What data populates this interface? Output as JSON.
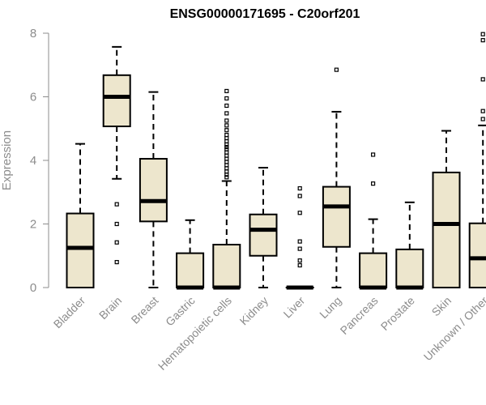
{
  "chart_data": {
    "type": "box",
    "title": "ENSG00000171695 - C20orf201",
    "xlabel": "",
    "ylabel": "Expression",
    "ylim": [
      0,
      8
    ],
    "yticks": [
      0,
      2,
      4,
      6,
      8
    ],
    "grid": false,
    "legend": "none",
    "colors": {
      "box_fill": "#ede6cd",
      "stroke": "#000000",
      "axis": "#8c8c8c"
    },
    "categories": [
      "Bladder",
      "Brain",
      "Breast",
      "Gastric",
      "Hematopoietic cells",
      "Kidney",
      "Liver",
      "Lung",
      "Pancreas",
      "Prostate",
      "Skin",
      "Unknown / Other"
    ],
    "boxes": [
      {
        "name": "Bladder",
        "whisker_low": 0,
        "q1": 0,
        "median": 1.25,
        "q3": 2.33,
        "whisker_high": 4.52,
        "outliers": []
      },
      {
        "name": "Brain",
        "whisker_low": 3.42,
        "q1": 5.07,
        "median": 6.0,
        "q3": 6.68,
        "whisker_high": 7.57,
        "outliers": [
          2.62,
          2.0,
          1.42,
          0.8
        ]
      },
      {
        "name": "Breast",
        "whisker_low": 0,
        "q1": 2.08,
        "median": 2.72,
        "q3": 4.05,
        "whisker_high": 6.15,
        "outliers": []
      },
      {
        "name": "Gastric",
        "whisker_low": 0,
        "q1": 0,
        "median": 0,
        "q3": 1.08,
        "whisker_high": 2.12,
        "outliers": []
      },
      {
        "name": "Hematopoietic cells",
        "whisker_low": 0,
        "q1": 0,
        "median": 0,
        "q3": 1.35,
        "whisker_high": 3.35,
        "outliers": [
          6.18,
          5.95,
          5.72,
          5.48,
          5.25,
          5.1,
          4.95,
          4.8,
          4.7,
          4.6,
          4.5,
          4.42,
          4.35,
          4.25,
          4.15,
          4.05,
          3.95,
          3.85,
          3.75,
          3.65,
          3.55,
          3.47
        ]
      },
      {
        "name": "Kidney",
        "whisker_low": 0,
        "q1": 1.0,
        "median": 1.82,
        "q3": 2.3,
        "whisker_high": 3.77,
        "outliers": []
      },
      {
        "name": "Liver",
        "whisker_low": 0,
        "q1": 0,
        "median": 0,
        "q3": 0,
        "whisker_high": 0,
        "outliers": [
          3.12,
          2.88,
          2.35,
          1.45,
          1.22,
          0.85,
          0.7
        ]
      },
      {
        "name": "Lung",
        "whisker_low": 0,
        "q1": 1.28,
        "median": 2.55,
        "q3": 3.17,
        "whisker_high": 5.53,
        "outliers": [
          6.85
        ]
      },
      {
        "name": "Pancreas",
        "whisker_low": 0,
        "q1": 0,
        "median": 0,
        "q3": 1.08,
        "whisker_high": 2.15,
        "outliers": [
          4.18,
          3.27
        ]
      },
      {
        "name": "Prostate",
        "whisker_low": 0,
        "q1": 0,
        "median": 0,
        "q3": 1.2,
        "whisker_high": 2.68,
        "outliers": []
      },
      {
        "name": "Skin",
        "whisker_low": 0,
        "q1": 0,
        "median": 2.0,
        "q3": 3.62,
        "whisker_high": 4.93,
        "outliers": []
      },
      {
        "name": "Unknown / Other",
        "whisker_low": 0,
        "q1": 0,
        "median": 0.92,
        "q3": 2.02,
        "whisker_high": 5.1,
        "outliers": [
          7.97,
          7.78,
          6.55,
          5.55,
          5.3
        ]
      }
    ]
  }
}
